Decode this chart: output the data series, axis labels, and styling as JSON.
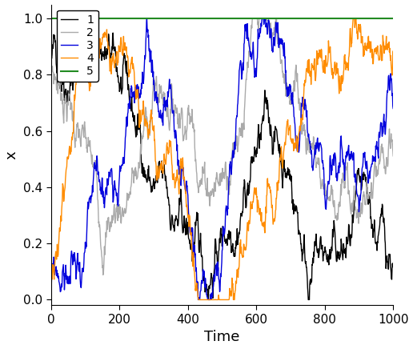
{
  "title": "",
  "xlabel": "Time",
  "ylabel": "x",
  "xlim": [
    0,
    1000
  ],
  "ylim": [
    -0.02,
    1.05
  ],
  "n_steps": 1001,
  "series": [
    {
      "label": "1",
      "color": "#000000",
      "lw": 1.0
    },
    {
      "label": "2",
      "color": "#aaaaaa",
      "lw": 1.0
    },
    {
      "label": "3",
      "color": "#0000dd",
      "lw": 1.0
    },
    {
      "label": "4",
      "color": "#ff8c00",
      "lw": 1.0
    },
    {
      "label": "5",
      "color": "#228B22",
      "lw": 1.5
    }
  ],
  "legend_loc": "upper left",
  "tick_fontsize": 11,
  "label_fontsize": 13,
  "bg_color": "#ffffff",
  "spine_color": "#000000"
}
